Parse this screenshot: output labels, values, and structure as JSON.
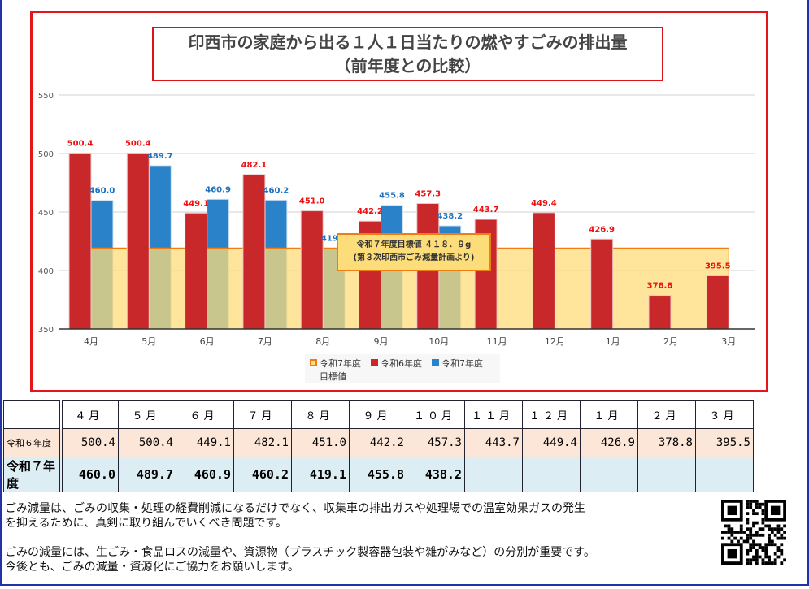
{
  "chart_data": {
    "type": "bar",
    "title": "印西市の家庭から出る１人１日当たりの燃やすごみの排出量",
    "subtitle": "（前年度との比較）",
    "categories": [
      "4月",
      "5月",
      "6月",
      "7月",
      "8月",
      "9月",
      "10月",
      "11月",
      "12月",
      "1月",
      "2月",
      "3月"
    ],
    "ylim": [
      350,
      550
    ],
    "yticks": [
      350,
      400,
      450,
      500,
      550
    ],
    "grid": true,
    "legend_position": "bottom",
    "series": [
      {
        "name": "令和6年度",
        "color": "#c8282a",
        "values": [
          500.4,
          500.4,
          449.1,
          482.1,
          451.0,
          442.2,
          457.3,
          443.7,
          449.4,
          426.9,
          378.8,
          395.5
        ]
      },
      {
        "name": "令和7年度",
        "color": "#2a82c8",
        "values": [
          460.0,
          489.7,
          460.9,
          460.2,
          419.1,
          455.8,
          438.2,
          null,
          null,
          null,
          null,
          null
        ]
      }
    ],
    "target": {
      "name": "令和7年度目標値",
      "value": 418.9,
      "color": "#fddc7a",
      "edge": "#f07d12",
      "note_line1": "令和７年度目標値 ４１８．９g",
      "note_line2": "(第３次印西市ごみ減量計画より)"
    }
  },
  "legend": {
    "target1": "令和7年度",
    "target2": "目標値",
    "r6": "令和6年度",
    "r7": "令和7年度"
  },
  "table": {
    "months": [
      "４月",
      "５月",
      "６月",
      "７月",
      "８月",
      "９月",
      "１０月",
      "１１月",
      "１２月",
      "１月",
      "２月",
      "３月"
    ],
    "r6_label": "令和６年度",
    "r6": [
      "500.4",
      "500.4",
      "449.1",
      "482.1",
      "451.0",
      "442.2",
      "457.3",
      "443.7",
      "449.4",
      "426.9",
      "378.8",
      "395.5"
    ],
    "r7_label": "令和７年度",
    "r7": [
      "460.0",
      "489.7",
      "460.9",
      "460.2",
      "419.1",
      "455.8",
      "438.2",
      "",
      "",
      "",
      "",
      ""
    ]
  },
  "notes": {
    "p1a": "ごみ減量は、ごみの収集・処理の経費削減になるだけでなく、収集車の排出ガスや処理場での温室効果ガスの発生",
    "p1b": "を抑えるために、真剣に取り組んでいくべき問題です。",
    "p2a": "ごみの減量には、生ごみ・食品ロスの減量や、資源物（プラスチック製容器包装や雑がみなど）の分別が重要です。",
    "p2b": "今後とも、ごみの減量・資源化にご協力をお願いします。"
  }
}
